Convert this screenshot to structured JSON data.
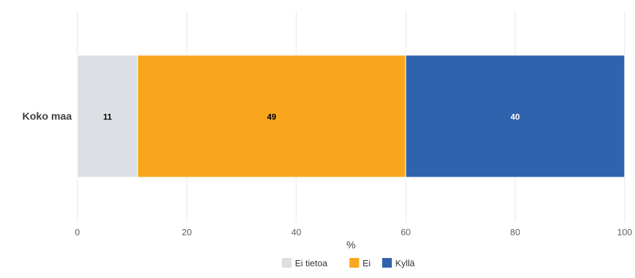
{
  "chart_data": {
    "type": "bar",
    "orientation": "horizontal",
    "stacked": true,
    "categories": [
      "Koko maa"
    ],
    "series": [
      {
        "name": "Ei tietoa",
        "values": [
          11
        ],
        "color": "#dcdfe3",
        "label_color": "#000000"
      },
      {
        "name": "Ei",
        "values": [
          49
        ],
        "color": "#f8a71c",
        "label_color": "#000000"
      },
      {
        "name": "Kyllä",
        "values": [
          40
        ],
        "color": "#3063ad",
        "label_color": "#ffffff"
      }
    ],
    "xlabel": "%",
    "xlim": [
      0,
      100
    ],
    "xticks": [
      0,
      20,
      40,
      60,
      80,
      100
    ],
    "grid": true,
    "legend_position": "bottom-center"
  }
}
